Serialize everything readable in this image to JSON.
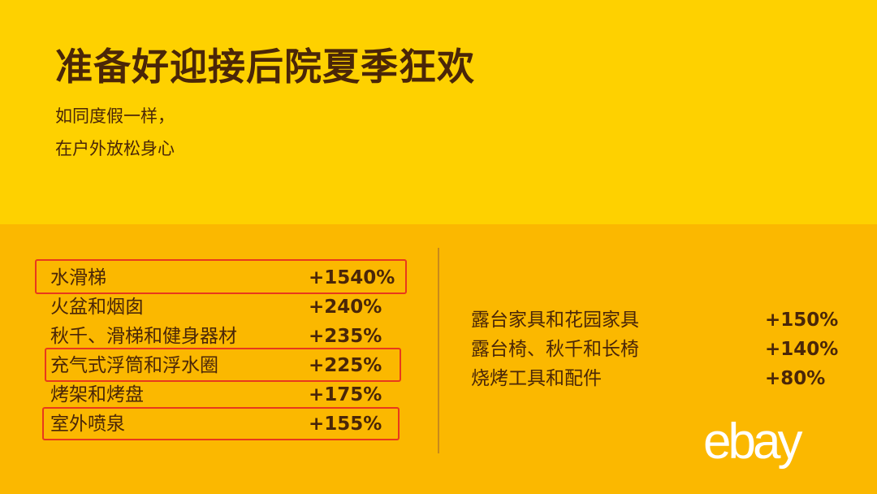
{
  "header": {
    "title": "准备好迎接后院夏季狂欢",
    "subtitle_lines": [
      "如同度假一样，",
      "在户外放松身心"
    ]
  },
  "left_list": [
    {
      "label": "水滑梯",
      "value": "+1540%",
      "highlighted": true
    },
    {
      "label": "火盆和烟囱",
      "value": "+240%",
      "highlighted": false
    },
    {
      "label": "秋千、滑梯和健身器材",
      "value": "+235%",
      "highlighted": false
    },
    {
      "label": "充气式浮筒和浮水圈",
      "value": "+225%",
      "highlighted": true
    },
    {
      "label": "烤架和烤盘",
      "value": "+175%",
      "highlighted": false
    },
    {
      "label": "室外喷泉",
      "value": "+155%",
      "highlighted": true
    }
  ],
  "right_list": [
    {
      "label": "露台家具和花园家具",
      "value": "+150%"
    },
    {
      "label": "露台椅、秋千和长椅",
      "value": "+140%"
    },
    {
      "label": "烧烤工具和配件",
      "value": "+80%"
    }
  ],
  "logo": {
    "text": "ebay"
  },
  "colors": {
    "top_bg": "#FED100",
    "bottom_bg": "#FBB800",
    "text": "#4A2608",
    "highlight": "#E8391C",
    "logo": "#FFFFFF"
  }
}
